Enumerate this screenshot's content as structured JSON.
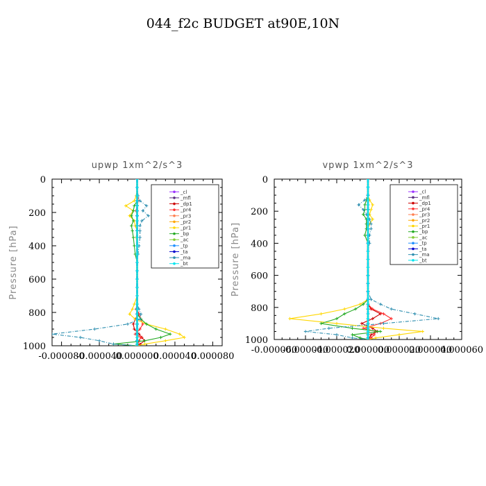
{
  "title": "044_f2c  BUDGET at90E,10N",
  "chart_data": [
    {
      "type": "line",
      "title": "upwp   1xm^2/s^3",
      "ylabel": "Pressure [hPa]",
      "xlabel": "",
      "ylim": [
        1000,
        0
      ],
      "xlim": [
        -9e-05,
        9e-05
      ],
      "yticks": [
        0,
        200,
        400,
        600,
        800,
        1000
      ],
      "ytick_labels": [
        "0",
        "200",
        "400",
        "600",
        "800",
        "1000"
      ],
      "xticks": [
        -8e-05,
        -4e-05,
        0,
        4e-05,
        8e-05
      ],
      "xtick_labels": [
        "-0.000080",
        "-0.000040",
        "0.000000",
        "0.000040",
        "0.000080"
      ],
      "legend_loc": "top-right",
      "grid": false,
      "y": [
        0,
        50,
        100,
        130,
        160,
        190,
        220,
        250,
        280,
        310,
        350,
        400,
        450,
        500,
        550,
        600,
        650,
        700,
        750,
        780,
        810,
        840,
        870,
        900,
        930,
        950,
        970,
        990,
        1000
      ],
      "series": [
        {
          "name": "_cl",
          "color": "#9b30ff",
          "values": [
            0,
            0,
            0,
            0,
            0,
            0,
            0,
            0,
            0,
            0,
            0,
            0,
            0,
            0,
            0,
            0,
            0,
            0,
            0,
            0,
            0,
            0,
            0,
            0,
            0,
            0,
            0,
            0,
            0
          ]
        },
        {
          "name": "_mfl",
          "color": "#5a2d82",
          "values": [
            0,
            0,
            0,
            0,
            0,
            0,
            0,
            0,
            0,
            0,
            0,
            0,
            0,
            0,
            0,
            0,
            0,
            0,
            0,
            0,
            0,
            0,
            0,
            0,
            0,
            0,
            0,
            0,
            0
          ]
        },
        {
          "name": "_dp1",
          "color": "#cc0000",
          "values": [
            0,
            0,
            1e-06,
            1e-06,
            0,
            -1e-06,
            0,
            0,
            0,
            0,
            0,
            0,
            0,
            0,
            0,
            0,
            0,
            0,
            0,
            -1e-06,
            2e-06,
            -2e-06,
            -4e-06,
            -3e-06,
            2e-06,
            5e-06,
            8e-06,
            3e-06,
            0
          ]
        },
        {
          "name": "_pr4",
          "color": "#ff3030",
          "values": [
            0,
            0,
            0,
            1e-06,
            0,
            -1e-06,
            0,
            0,
            0,
            0,
            0,
            0,
            0,
            0,
            0,
            0,
            0,
            0,
            0,
            0,
            2e-06,
            4e-06,
            6e-06,
            3e-06,
            -2e-06,
            4e-06,
            2e-06,
            1e-06,
            0
          ]
        },
        {
          "name": "_pr3",
          "color": "#ff7f50",
          "values": [
            0,
            0,
            0,
            0,
            0,
            0,
            0,
            0,
            0,
            0,
            0,
            0,
            0,
            0,
            0,
            0,
            0,
            0,
            0,
            0,
            0,
            0,
            0,
            0,
            0,
            0,
            0,
            0,
            0
          ]
        },
        {
          "name": "_pr2",
          "color": "#ffa500",
          "values": [
            0,
            0,
            0,
            0,
            0,
            0,
            0,
            0,
            0,
            0,
            0,
            0,
            0,
            0,
            0,
            0,
            0,
            0,
            0,
            0,
            0,
            0,
            0,
            0,
            0,
            0,
            0,
            0,
            0
          ]
        },
        {
          "name": "_pr1",
          "color": "#ffd700",
          "values": [
            0,
            0,
            -1e-06,
            -3e-06,
            -1.2e-05,
            -4e-06,
            -8e-06,
            -3e-06,
            -2e-06,
            0,
            -1e-06,
            0,
            0,
            0,
            0,
            0,
            0,
            0,
            -3e-06,
            -5e-06,
            -8e-06,
            -2e-06,
            1e-05,
            3e-05,
            4.5e-05,
            5e-05,
            3e-05,
            8e-06,
            0
          ]
        },
        {
          "name": "_bp",
          "color": "#22aa22",
          "values": [
            0,
            0,
            0,
            0,
            -3e-06,
            -4e-06,
            -6e-06,
            -4e-06,
            -6e-06,
            -5e-06,
            -4e-06,
            -3e-06,
            -2e-06,
            0,
            0,
            0,
            0,
            0,
            0,
            0,
            0,
            4e-06,
            1e-05,
            2e-05,
            3.5e-05,
            2.5e-05,
            8e-06,
            -2.5e-05,
            0
          ]
        },
        {
          "name": "_ac",
          "color": "#7fcc33",
          "values": [
            0,
            0,
            0,
            0,
            0,
            0,
            0,
            0,
            0,
            0,
            0,
            0,
            0,
            0,
            0,
            0,
            0,
            0,
            0,
            0,
            0,
            0,
            0,
            0,
            0,
            0,
            0,
            0,
            0
          ]
        },
        {
          "name": "_tp",
          "color": "#1e90ff",
          "values": [
            0,
            0,
            0,
            0,
            0,
            0,
            0,
            0,
            0,
            0,
            0,
            0,
            0,
            0,
            0,
            0,
            0,
            0,
            0,
            0,
            0,
            0,
            0,
            0,
            0,
            0,
            0,
            0,
            0
          ]
        },
        {
          "name": "_ta",
          "color": "#0000cd",
          "values": [
            0,
            0,
            0,
            0,
            0,
            0,
            0,
            0,
            0,
            0,
            0,
            0,
            0,
            0,
            0,
            0,
            0,
            0,
            0,
            0,
            0,
            0,
            0,
            0,
            0,
            0,
            0,
            0,
            0
          ]
        },
        {
          "name": "_ma",
          "color": "#2f8fb0",
          "values": [
            0,
            0,
            1e-06,
            3e-06,
            1e-05,
            6e-06,
            1.2e-05,
            5e-06,
            3e-06,
            3e-06,
            3e-06,
            2e-06,
            1e-06,
            0,
            0,
            0,
            0,
            0,
            0,
            2e-06,
            4e-06,
            3e-06,
            -1e-05,
            -4.5e-05,
            -9e-05,
            -6e-05,
            -4e-05,
            -2.5e-05,
            0
          ]
        },
        {
          "name": "_bt",
          "color": "#00e5ee",
          "values": [
            0,
            0,
            0,
            0,
            0,
            0,
            0,
            0,
            0,
            0,
            0,
            0,
            0,
            0,
            0,
            0,
            0,
            0,
            0,
            0,
            0,
            0,
            0,
            0,
            0,
            0,
            0,
            0,
            0
          ]
        }
      ]
    },
    {
      "type": "line",
      "title": "vpwp   1xm^2/s^3",
      "ylabel": "Pressure [hPa]",
      "xlabel": "",
      "ylim": [
        1000,
        0
      ],
      "xlim": [
        -6e-05,
        6e-05
      ],
      "yticks": [
        0,
        200,
        400,
        600,
        800,
        1000
      ],
      "ytick_labels": [
        "0",
        "200",
        "400",
        "600",
        "800",
        "1000"
      ],
      "xticks": [
        -6e-05,
        -4e-05,
        -2e-05,
        0,
        2e-05,
        4e-05,
        6e-05
      ],
      "xtick_labels": [
        "-0.000060",
        "-0.000040",
        "-0.000020",
        "0.000000",
        "0.000020",
        "0.000040",
        "0.000060"
      ],
      "legend_loc": "top-right",
      "grid": false,
      "y": [
        0,
        50,
        100,
        130,
        160,
        190,
        220,
        250,
        280,
        310,
        350,
        400,
        450,
        500,
        550,
        600,
        650,
        700,
        750,
        780,
        810,
        840,
        870,
        900,
        930,
        950,
        970,
        990,
        1000
      ],
      "series": [
        {
          "name": "_cl",
          "color": "#9b30ff",
          "values": [
            0,
            0,
            0,
            0,
            0,
            0,
            0,
            0,
            0,
            0,
            0,
            0,
            0,
            0,
            0,
            0,
            0,
            0,
            0,
            0,
            0,
            0,
            0,
            0,
            0,
            0,
            0,
            0,
            0
          ]
        },
        {
          "name": "_mfl",
          "color": "#5a2d82",
          "values": [
            0,
            0,
            0,
            0,
            0,
            0,
            0,
            0,
            0,
            0,
            0,
            0,
            0,
            0,
            0,
            0,
            0,
            0,
            0,
            0,
            0,
            0,
            0,
            0,
            0,
            0,
            0,
            0,
            0
          ]
        },
        {
          "name": "_dp1",
          "color": "#cc0000",
          "values": [
            0,
            0,
            0,
            0,
            0,
            0,
            0,
            0,
            0,
            0,
            0,
            0,
            0,
            0,
            0,
            0,
            0,
            0,
            0,
            0,
            2e-06,
            8e-06,
            3e-06,
            -4e-06,
            3e-06,
            6e-06,
            2e-06,
            1e-06,
            0
          ]
        },
        {
          "name": "_pr4",
          "color": "#ff3030",
          "values": [
            0,
            0,
            0,
            0,
            0,
            0,
            0,
            0,
            0,
            0,
            0,
            0,
            0,
            0,
            0,
            0,
            0,
            0,
            0,
            0,
            3e-06,
            1e-05,
            1.5e-05,
            8e-06,
            -3e-06,
            5e-06,
            4e-06,
            2e-06,
            0
          ]
        },
        {
          "name": "_pr3",
          "color": "#ff7f50",
          "values": [
            0,
            0,
            0,
            0,
            0,
            0,
            0,
            0,
            0,
            0,
            0,
            0,
            0,
            0,
            0,
            0,
            0,
            0,
            0,
            0,
            0,
            0,
            0,
            0,
            0,
            0,
            0,
            0,
            0
          ]
        },
        {
          "name": "_pr2",
          "color": "#ffa500",
          "values": [
            0,
            0,
            0,
            0,
            0,
            0,
            0,
            0,
            0,
            0,
            0,
            0,
            0,
            0,
            0,
            0,
            0,
            0,
            0,
            0,
            0,
            0,
            0,
            0,
            0,
            0,
            0,
            0,
            0
          ]
        },
        {
          "name": "_pr1",
          "color": "#ffd700",
          "values": [
            0,
            0,
            0,
            1e-06,
            3e-06,
            2e-06,
            1e-06,
            3e-06,
            1e-06,
            0,
            0,
            0,
            0,
            0,
            0,
            0,
            0,
            0,
            0,
            -5e-06,
            -1.5e-05,
            -3e-05,
            -5e-05,
            -2e-05,
            1e-05,
            3.5e-05,
            2e-05,
            5e-06,
            0
          ]
        },
        {
          "name": "_bp",
          "color": "#22aa22",
          "values": [
            0,
            0,
            0,
            -1e-06,
            -2e-06,
            -2e-06,
            -3e-06,
            -1e-06,
            -1e-06,
            -1e-06,
            -2e-06,
            0,
            0,
            0,
            0,
            0,
            0,
            0,
            0,
            -3e-06,
            -8e-06,
            -1.5e-05,
            -2e-05,
            -3e-05,
            -1e-05,
            8e-06,
            -1e-05,
            -5e-06,
            0
          ]
        },
        {
          "name": "_ac",
          "color": "#7fcc33",
          "values": [
            0,
            0,
            0,
            0,
            0,
            0,
            0,
            0,
            0,
            0,
            0,
            0,
            0,
            0,
            0,
            0,
            0,
            0,
            0,
            0,
            0,
            0,
            0,
            0,
            0,
            0,
            0,
            0,
            0
          ]
        },
        {
          "name": "_tp",
          "color": "#1e90ff",
          "values": [
            0,
            0,
            0,
            0,
            0,
            0,
            0,
            0,
            0,
            0,
            0,
            0,
            0,
            0,
            0,
            0,
            0,
            0,
            0,
            0,
            0,
            0,
            0,
            0,
            0,
            0,
            0,
            0,
            0
          ]
        },
        {
          "name": "_ta",
          "color": "#0000cd",
          "values": [
            0,
            0,
            0,
            0,
            0,
            0,
            0,
            0,
            0,
            0,
            0,
            0,
            0,
            0,
            0,
            0,
            0,
            0,
            0,
            0,
            0,
            0,
            0,
            0,
            0,
            0,
            0,
            0,
            0
          ]
        },
        {
          "name": "_ma",
          "color": "#2f8fb0",
          "values": [
            0,
            0,
            0,
            -2e-06,
            -6e-06,
            -3e-06,
            -1e-06,
            1e-06,
            2e-06,
            2e-06,
            1e-06,
            1e-06,
            0,
            0,
            0,
            0,
            0,
            0,
            2e-06,
            8e-06,
            1.5e-05,
            3e-05,
            4.5e-05,
            1e-05,
            -2.5e-05,
            -4e-05,
            -2e-05,
            -1e-05,
            0
          ]
        },
        {
          "name": "_bt",
          "color": "#00e5ee",
          "values": [
            0,
            0,
            0,
            0,
            0,
            0,
            0,
            0,
            0,
            0,
            0,
            0,
            0,
            0,
            0,
            0,
            0,
            0,
            0,
            0,
            0,
            0,
            0,
            0,
            0,
            0,
            0,
            0,
            0
          ]
        }
      ]
    }
  ]
}
